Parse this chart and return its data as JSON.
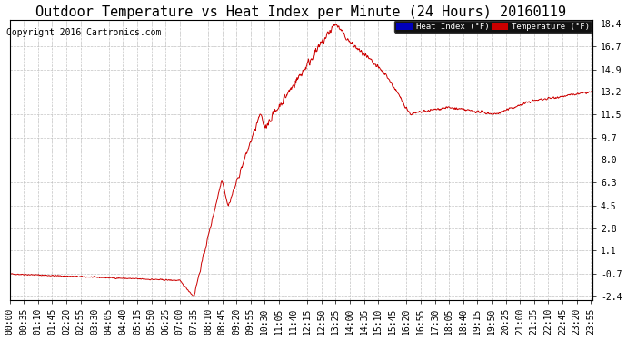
{
  "title": "Outdoor Temperature vs Heat Index per Minute (24 Hours) 20160119",
  "copyright": "Copyright 2016 Cartronics.com",
  "yticks": [
    -2.4,
    -0.7,
    1.1,
    2.8,
    4.5,
    6.3,
    8.0,
    9.7,
    11.5,
    13.2,
    14.9,
    16.7,
    18.4
  ],
  "ymin": -2.4,
  "ymax": 18.4,
  "line_color": "#cc0000",
  "heat_index_legend_bg": "#0000bb",
  "temp_legend_bg": "#cc0000",
  "legend_text_color": "#ffffff",
  "grid_color": "#bbbbbb",
  "background_color": "#ffffff",
  "plot_bg_color": "#ffffff",
  "title_fontsize": 11,
  "copyright_fontsize": 7,
  "tick_fontsize": 7,
  "xtick_step": 35
}
